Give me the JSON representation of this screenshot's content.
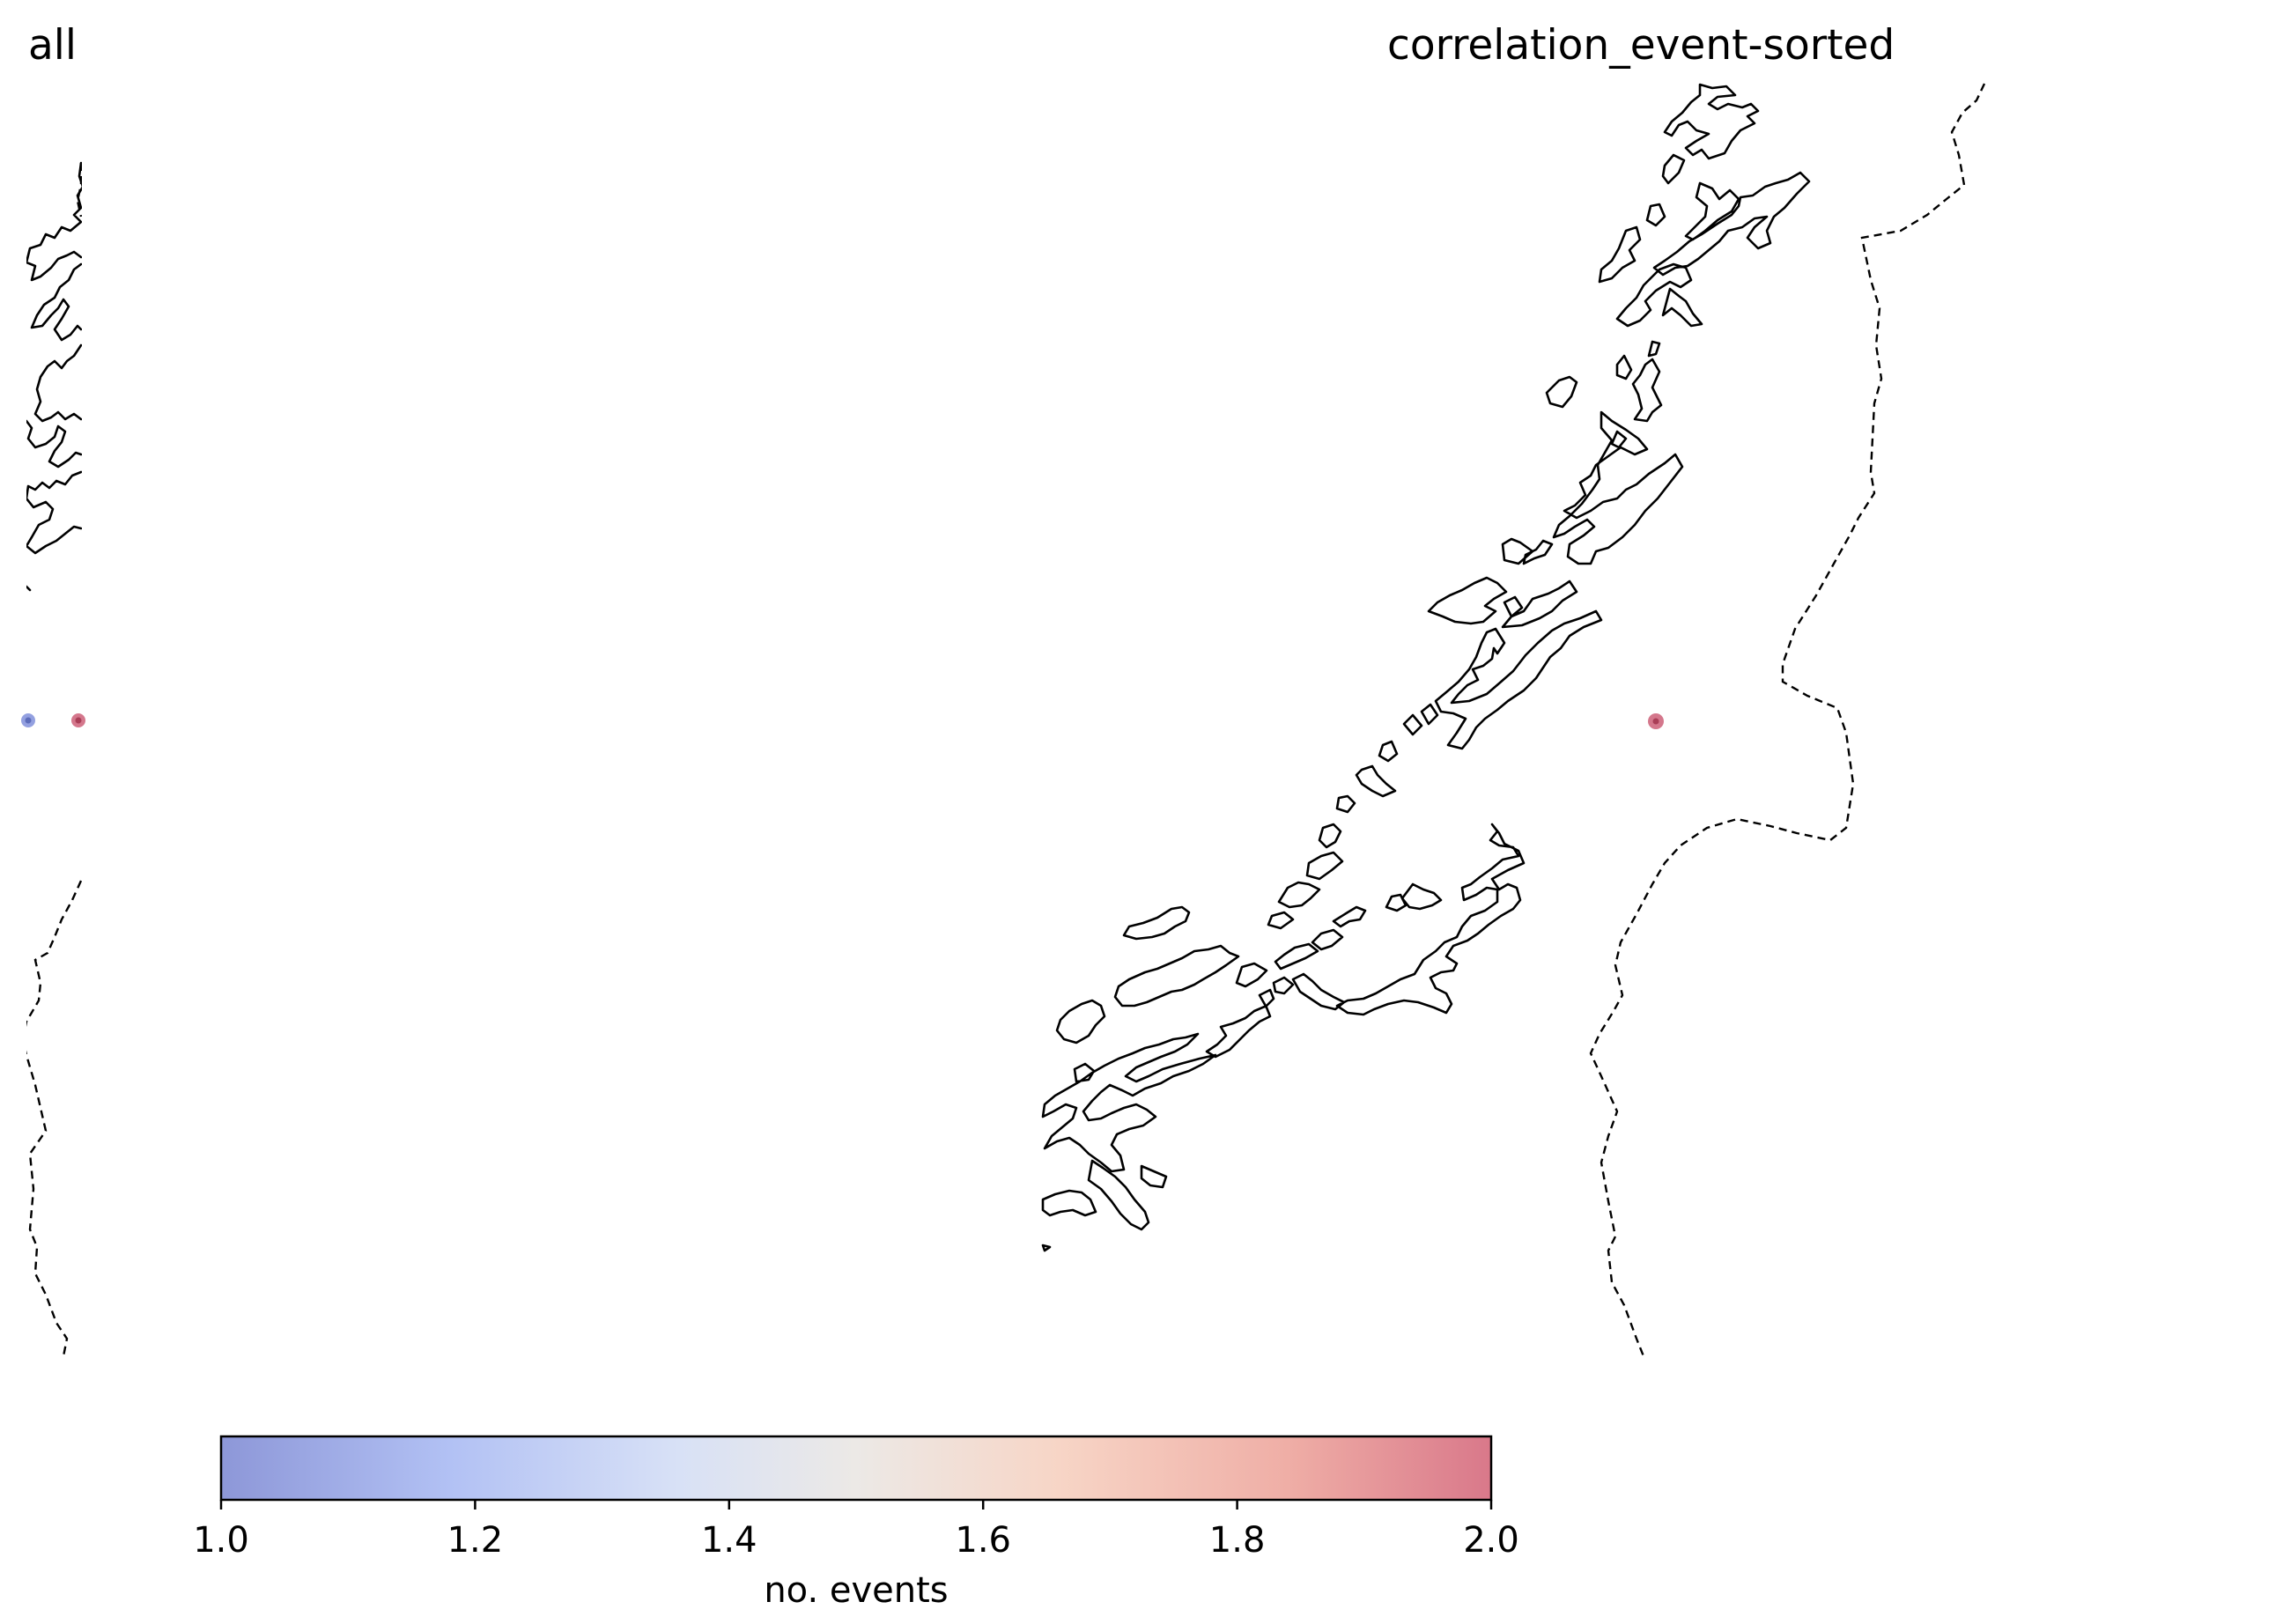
{
  "panels": [
    {
      "title": "all",
      "points": [
        {
          "value": 1.0,
          "color": "#6f80d6"
        },
        {
          "value": 2.0,
          "color": "#c64a66"
        }
      ]
    },
    {
      "title": "correlation_event-sorted",
      "points": [
        {
          "value": 2.0,
          "color": "#c64a66"
        }
      ]
    }
  ],
  "colorbar": {
    "label": "no. events",
    "min": 1.0,
    "max": 2.0,
    "ticks": [
      "1.0",
      "1.2",
      "1.4",
      "1.6",
      "1.8",
      "2.0"
    ],
    "colormap": "coolwarm",
    "colors": [
      "#8d97d8",
      "#b8c6f5",
      "#dde4f2",
      "#ede7e3",
      "#f6cdbd",
      "#eaa6a6",
      "#d9788a"
    ]
  }
}
